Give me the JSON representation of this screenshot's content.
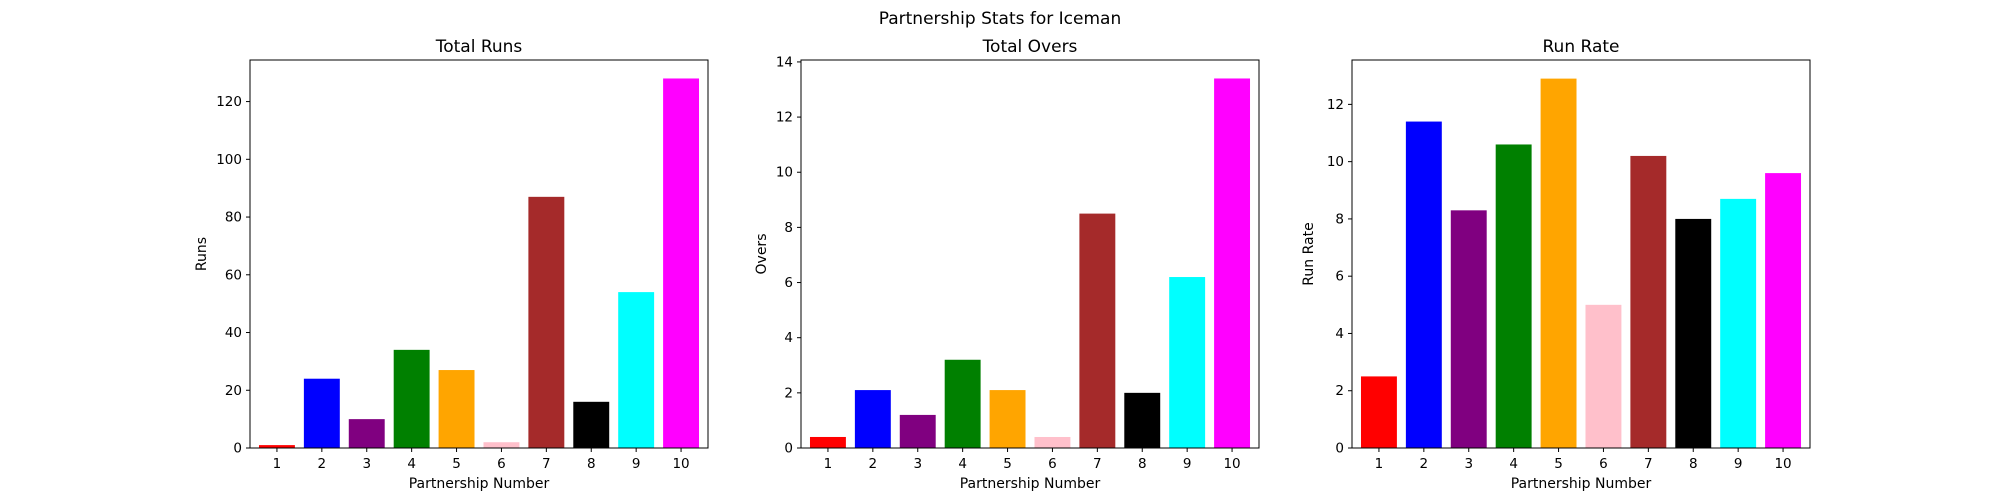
{
  "figure": {
    "suptitle": "Partnership Stats for Iceman"
  },
  "chart_data": [
    {
      "type": "bar",
      "title": "Total Runs",
      "xlabel": "Partnership Number",
      "ylabel": "Runs",
      "categories": [
        "1",
        "2",
        "3",
        "4",
        "5",
        "6",
        "7",
        "8",
        "9",
        "10"
      ],
      "values": [
        1,
        24,
        10,
        34,
        27,
        2,
        87,
        16,
        54,
        128
      ],
      "colors": [
        "#ff0000",
        "#0000ff",
        "#800080",
        "#008000",
        "#ffa500",
        "#ffc0cb",
        "#a52a2a",
        "#000000",
        "#00ffff",
        "#ff00ff"
      ],
      "ylim": [
        0,
        134.4
      ],
      "yticks": [
        0,
        20,
        40,
        60,
        80,
        100,
        120
      ],
      "grid": false,
      "legend": "none"
    },
    {
      "type": "bar",
      "title": "Total Overs",
      "xlabel": "Partnership Number",
      "ylabel": "Overs",
      "categories": [
        "1",
        "2",
        "3",
        "4",
        "5",
        "6",
        "7",
        "8",
        "9",
        "10"
      ],
      "values": [
        0.4,
        2.1,
        1.2,
        3.2,
        2.1,
        0.4,
        8.5,
        2.0,
        6.2,
        13.4
      ],
      "colors": [
        "#ff0000",
        "#0000ff",
        "#800080",
        "#008000",
        "#ffa500",
        "#ffc0cb",
        "#a52a2a",
        "#000000",
        "#00ffff",
        "#ff00ff"
      ],
      "ylim": [
        0,
        14.07
      ],
      "yticks": [
        0,
        2,
        4,
        6,
        8,
        10,
        12,
        14
      ],
      "grid": false,
      "legend": "none"
    },
    {
      "type": "bar",
      "title": "Run Rate",
      "xlabel": "Partnership Number",
      "ylabel": "Run Rate",
      "categories": [
        "1",
        "2",
        "3",
        "4",
        "5",
        "6",
        "7",
        "8",
        "9",
        "10"
      ],
      "values": [
        2.5,
        11.4,
        8.3,
        10.6,
        12.9,
        5.0,
        10.2,
        8.0,
        8.7,
        9.6
      ],
      "colors": [
        "#ff0000",
        "#0000ff",
        "#800080",
        "#008000",
        "#ffa500",
        "#ffc0cb",
        "#a52a2a",
        "#000000",
        "#00ffff",
        "#ff00ff"
      ],
      "ylim": [
        0,
        13.55
      ],
      "yticks": [
        0,
        2,
        4,
        6,
        8,
        10,
        12
      ],
      "grid": false,
      "legend": "none"
    }
  ]
}
